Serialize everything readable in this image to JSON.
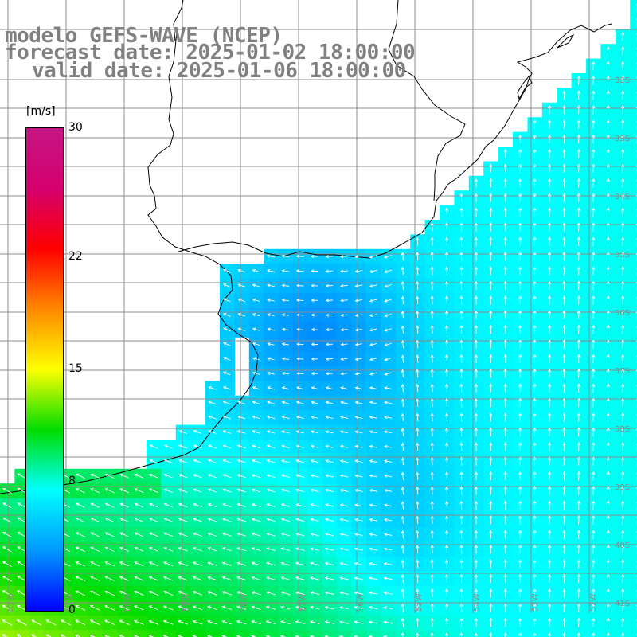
{
  "title": {
    "line1": "modelo GEFS-WAVE (NCEP)",
    "line2": "forecast date: 2025-01-02 18:00:00",
    "line3": "valid date: 2025-01-06 18:00:00"
  },
  "colorbar": {
    "unit": "[m/s]",
    "min": 0,
    "max": 30,
    "ticks": [
      "30",
      "22",
      "15",
      "8",
      "0"
    ],
    "tick_values": [
      30,
      22,
      15,
      8,
      0
    ],
    "colors": [
      "#0000ff",
      "#0099ff",
      "#00ffff",
      "#00dd00",
      "#ffff00",
      "#ff8800",
      "#ff0000",
      "#d4006e",
      "#c71585"
    ]
  },
  "grid": {
    "lat_labels": [
      "32S",
      "33S",
      "34S",
      "35S",
      "36S",
      "37S",
      "38S",
      "39S",
      "40S",
      "41S"
    ],
    "lon_labels": [
      "62W",
      "61W",
      "60W",
      "59W",
      "58W",
      "57W",
      "56W",
      "55W",
      "54W",
      "53W",
      "52W"
    ]
  },
  "colors": {
    "land": "#ffffff",
    "coast": "#000000",
    "grid": "#8c8c8c",
    "vector": "#ffffff"
  }
}
